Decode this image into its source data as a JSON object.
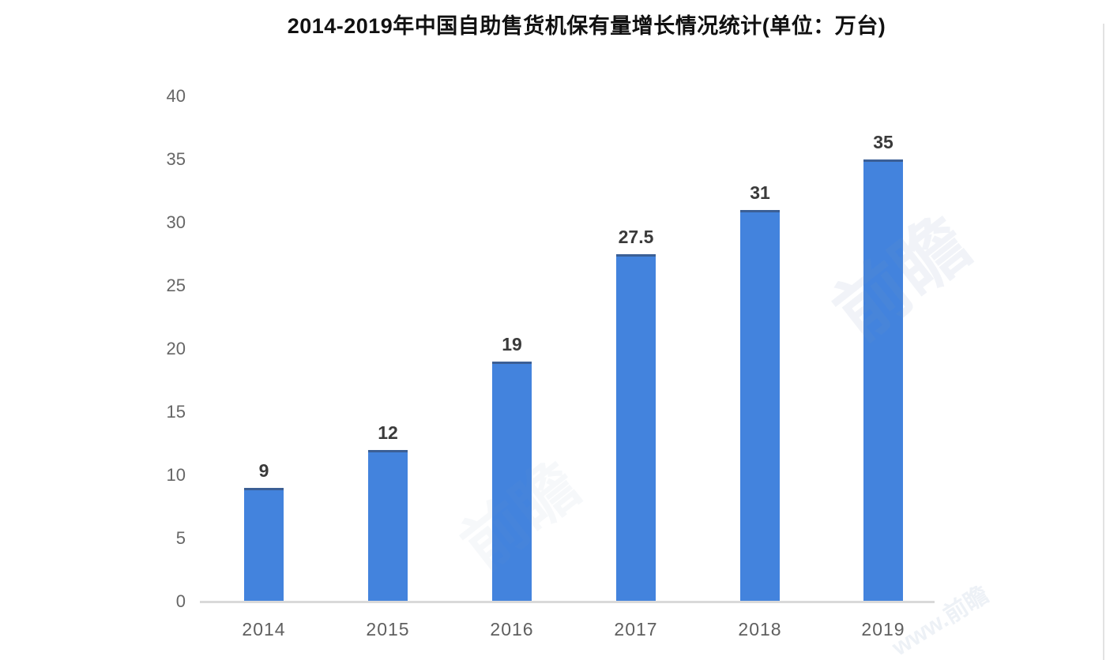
{
  "chart_data": {
    "type": "bar",
    "title": "2014-2019年中国自助售货机保有量增长情况统计(单位：万台)",
    "categories": [
      "2014",
      "2015",
      "2016",
      "2017",
      "2018",
      "2019"
    ],
    "values": [
      9,
      12,
      19,
      27.5,
      31,
      35
    ],
    "data_labels": [
      "9",
      "12",
      "19",
      "27.5",
      "31",
      "35"
    ],
    "y_ticks": [
      "40",
      "35",
      "30",
      "25",
      "20",
      "15",
      "10",
      "5",
      "0"
    ],
    "ylim": [
      0,
      40
    ],
    "xlabel": "",
    "ylabel": "",
    "grid": "off",
    "legend": "none",
    "bar_color": "#4383dd",
    "bar_top_edge_color": "#34425a",
    "axis_line_color": "#d9d9d9",
    "y_tick_label_color": "#666666",
    "x_tick_label_color": "#5f5f5f",
    "data_label_color": "#3a3a3a",
    "title_color": "#111111",
    "background_color": "#ffffff"
  },
  "watermarks": [
    {
      "text": "前瞻"
    },
    {
      "text": "前瞻"
    },
    {
      "text": "www.前瞻"
    }
  ]
}
